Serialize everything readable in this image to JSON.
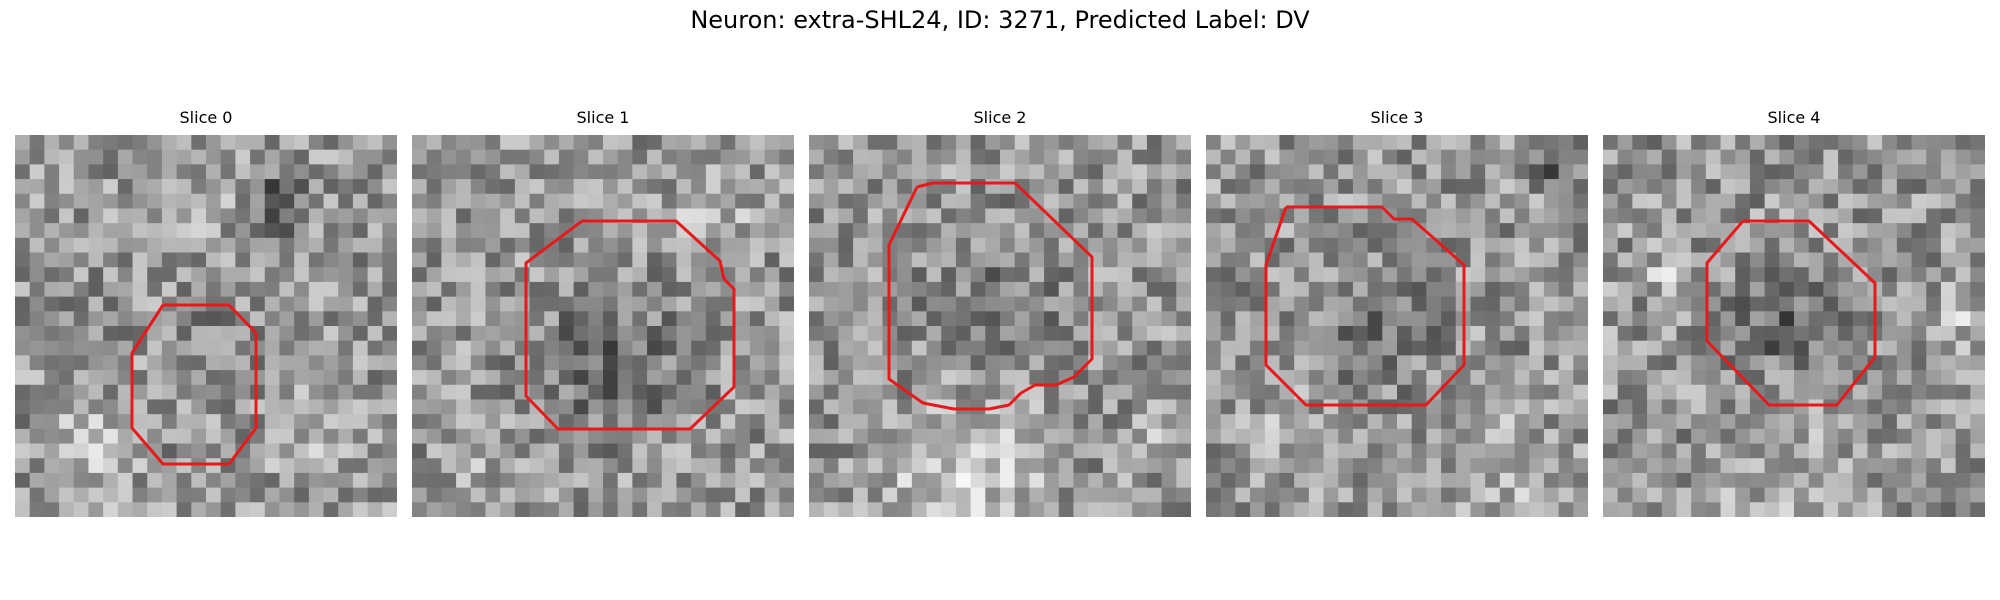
{
  "figure": {
    "title": "Neuron: extra-SHL24, ID: 3271, Predicted Label: DV"
  },
  "outline_color": "#e8191a",
  "colormap": "gray",
  "panels": [
    {
      "title": "Slice 0"
    },
    {
      "title": "Slice 1"
    },
    {
      "title": "Slice 2"
    },
    {
      "title": "Slice 3"
    },
    {
      "title": "Slice 4"
    }
  ]
}
